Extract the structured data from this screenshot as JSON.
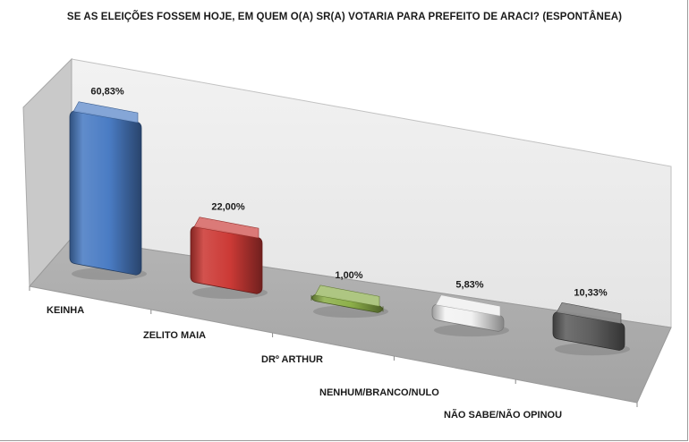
{
  "chart_data": {
    "type": "bar",
    "title": "SE AS ELEIÇÕES FOSSEM HOJE, EM QUEM O(A) SR(A) VOTARIA PARA PREFEITO DE ARACI? (ESPONTÂNEA)",
    "categories": [
      "KEINHA",
      "ZELITO MAIA",
      "DRº ARTHUR",
      "NENHUM/BRANCO/NULO",
      "NÃO SABE/NÃO OPINOU"
    ],
    "values": [
      60.83,
      22.0,
      1.0,
      5.83,
      10.33
    ],
    "data_labels": [
      "60,83%",
      "22,00%",
      "1,00%",
      "5,83%",
      "10,33%"
    ],
    "colors": [
      "#4a7cc4",
      "#cc3a36",
      "#8db04a",
      "#f2f2f2",
      "#5e5e5e"
    ],
    "ylim": [
      0,
      70
    ],
    "grid": false,
    "legend": "none"
  }
}
